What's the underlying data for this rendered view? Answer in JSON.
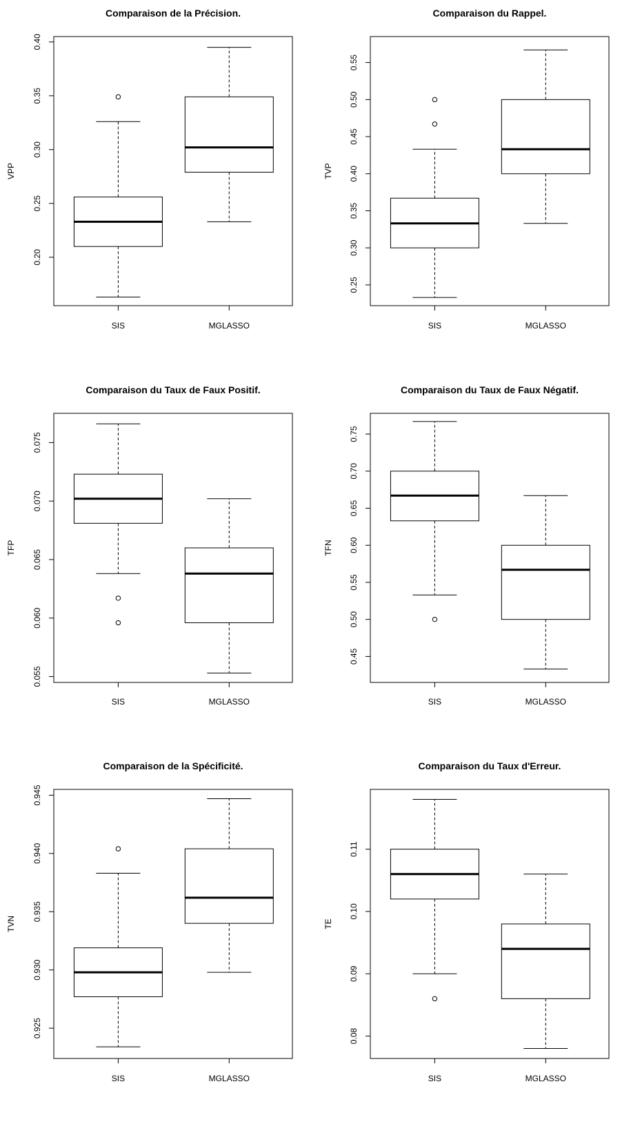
{
  "chart_data": [
    {
      "type": "boxplot",
      "title": "Comparaison de la Précision.",
      "ylabel": "VPP",
      "categories": [
        "SIS",
        "MGLASSO"
      ],
      "ylim": [
        0.155,
        0.405
      ],
      "yticks": [
        0.2,
        0.25,
        0.3,
        0.35,
        0.4
      ],
      "ytick_labels": [
        "0.20",
        "0.25",
        "0.30",
        "0.35",
        "0.40"
      ],
      "boxes": [
        {
          "name": "SIS",
          "whisker_low": 0.163,
          "q1": 0.21,
          "median": 0.233,
          "q3": 0.256,
          "whisker_high": 0.326,
          "outliers": [
            0.349
          ]
        },
        {
          "name": "MGLASSO",
          "whisker_low": 0.233,
          "q1": 0.279,
          "median": 0.302,
          "q3": 0.349,
          "whisker_high": 0.395,
          "outliers": []
        }
      ]
    },
    {
      "type": "boxplot",
      "title": "Comparaison du Rappel.",
      "ylabel": "TVP",
      "categories": [
        "SIS",
        "MGLASSO"
      ],
      "ylim": [
        0.222,
        0.585
      ],
      "yticks": [
        0.25,
        0.3,
        0.35,
        0.4,
        0.45,
        0.5,
        0.55
      ],
      "ytick_labels": [
        "0.25",
        "0.30",
        "0.35",
        "0.40",
        "0.45",
        "0.50",
        "0.55"
      ],
      "boxes": [
        {
          "name": "SIS",
          "whisker_low": 0.233,
          "q1": 0.3,
          "median": 0.333,
          "q3": 0.367,
          "whisker_high": 0.433,
          "outliers": [
            0.467,
            0.5
          ]
        },
        {
          "name": "MGLASSO",
          "whisker_low": 0.333,
          "q1": 0.4,
          "median": 0.433,
          "q3": 0.5,
          "whisker_high": 0.567,
          "outliers": []
        }
      ]
    },
    {
      "type": "boxplot",
      "title": "Comparaison du Taux de Faux Positif.",
      "ylabel": "TFP",
      "categories": [
        "SIS",
        "MGLASSO"
      ],
      "ylim": [
        0.0545,
        0.0775
      ],
      "yticks": [
        0.055,
        0.06,
        0.065,
        0.07,
        0.075
      ],
      "ytick_labels": [
        "0.055",
        "0.060",
        "0.065",
        "0.070",
        "0.075"
      ],
      "boxes": [
        {
          "name": "SIS",
          "whisker_low": 0.0638,
          "q1": 0.0681,
          "median": 0.0702,
          "q3": 0.0723,
          "whisker_high": 0.0766,
          "outliers": [
            0.0617,
            0.0596
          ]
        },
        {
          "name": "MGLASSO",
          "whisker_low": 0.0553,
          "q1": 0.0596,
          "median": 0.0638,
          "q3": 0.066,
          "whisker_high": 0.0702,
          "outliers": []
        }
      ]
    },
    {
      "type": "boxplot",
      "title": "Comparaison du Taux de Faux Négatif.",
      "ylabel": "TFN",
      "categories": [
        "SIS",
        "MGLASSO"
      ],
      "ylim": [
        0.415,
        0.778
      ],
      "yticks": [
        0.45,
        0.5,
        0.55,
        0.6,
        0.65,
        0.7,
        0.75
      ],
      "ytick_labels": [
        "0.45",
        "0.50",
        "0.55",
        "0.60",
        "0.65",
        "0.70",
        "0.75"
      ],
      "boxes": [
        {
          "name": "SIS",
          "whisker_low": 0.533,
          "q1": 0.633,
          "median": 0.667,
          "q3": 0.7,
          "whisker_high": 0.767,
          "outliers": [
            0.5
          ]
        },
        {
          "name": "MGLASSO",
          "whisker_low": 0.433,
          "q1": 0.5,
          "median": 0.567,
          "q3": 0.6,
          "whisker_high": 0.667,
          "outliers": []
        }
      ]
    },
    {
      "type": "boxplot",
      "title": "Comparaison de la Spécificité.",
      "ylabel": "TVN",
      "categories": [
        "SIS",
        "MGLASSO"
      ],
      "ylim": [
        0.9224,
        0.9455
      ],
      "yticks": [
        0.925,
        0.93,
        0.935,
        0.94,
        0.945
      ],
      "ytick_labels": [
        "0.925",
        "0.930",
        "0.935",
        "0.940",
        "0.945"
      ],
      "boxes": [
        {
          "name": "SIS",
          "whisker_low": 0.9234,
          "q1": 0.9277,
          "median": 0.9298,
          "q3": 0.9319,
          "whisker_high": 0.9383,
          "outliers": [
            0.9404
          ]
        },
        {
          "name": "MGLASSO",
          "whisker_low": 0.9298,
          "q1": 0.934,
          "median": 0.9362,
          "q3": 0.9404,
          "whisker_high": 0.9447,
          "outliers": []
        }
      ]
    },
    {
      "type": "boxplot",
      "title": "Comparaison du Taux d'Erreur.",
      "ylabel": "TE",
      "categories": [
        "SIS",
        "MGLASSO"
      ],
      "ylim": [
        0.0764,
        0.1196
      ],
      "yticks": [
        0.08,
        0.09,
        0.1,
        0.11
      ],
      "ytick_labels": [
        "0.08",
        "0.09",
        "0.10",
        "0.11"
      ],
      "boxes": [
        {
          "name": "SIS",
          "whisker_low": 0.09,
          "q1": 0.102,
          "median": 0.106,
          "q3": 0.11,
          "whisker_high": 0.118,
          "outliers": [
            0.086
          ]
        },
        {
          "name": "MGLASSO",
          "whisker_low": 0.078,
          "q1": 0.086,
          "median": 0.094,
          "q3": 0.098,
          "whisker_high": 0.106,
          "outliers": []
        }
      ]
    }
  ]
}
